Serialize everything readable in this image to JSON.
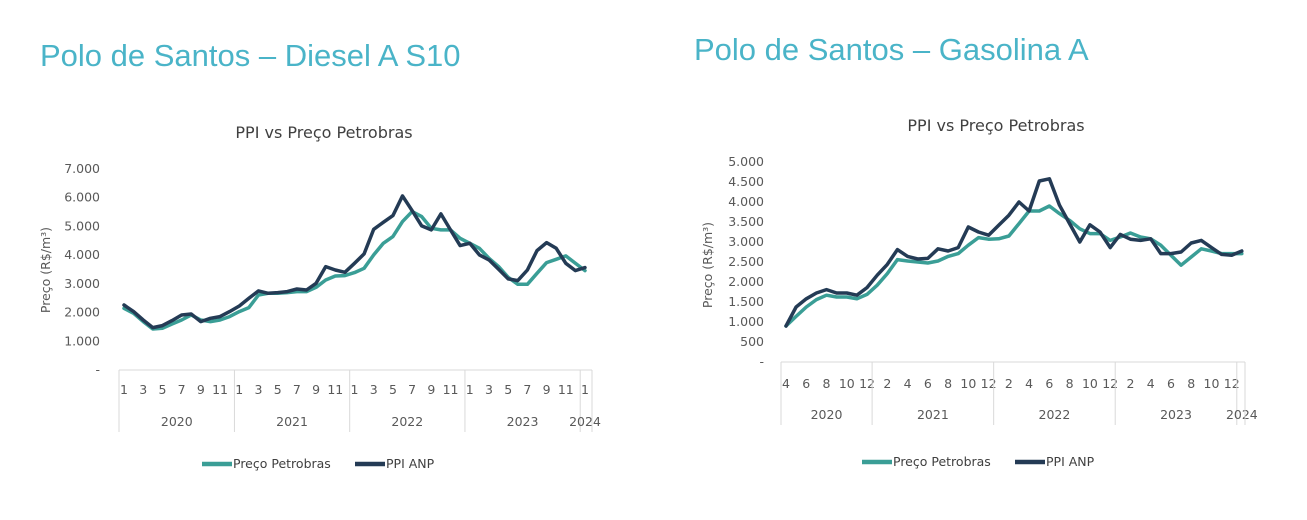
{
  "titles": [
    "Polo de Santos – Diesel A S10",
    "Polo de Santos – Gasolina A"
  ],
  "chart_data": [
    {
      "type": "line",
      "title": "PPI vs Preço Petrobras",
      "ylabel": "Preço (R$/m³)",
      "xlabel": "",
      "ylim": [
        0,
        7000
      ],
      "y_ticks": [
        "-",
        "1.000",
        "2.000",
        "3.000",
        "4.000",
        "5.000",
        "6.000",
        "7.000"
      ],
      "y_tick_values": [
        0,
        1000,
        2000,
        3000,
        4000,
        5000,
        6000,
        7000
      ],
      "grid": false,
      "legend_position": "bottom",
      "start": {
        "year": 2020,
        "month": 1
      },
      "tick_months": [
        1,
        3,
        5,
        7,
        9,
        11
      ],
      "years": [
        "2020",
        "2021",
        "2022",
        "2023",
        "2024"
      ],
      "series": [
        {
          "name": "Preço Petrobras",
          "color": "#3A9E96",
          "values": [
            2149,
            1974,
            1684,
            1429,
            1452,
            1603,
            1742,
            1916,
            1742,
            1684,
            1742,
            1858,
            2033,
            2172,
            2613,
            2671,
            2671,
            2694,
            2729,
            2729,
            2880,
            3136,
            3275,
            3287,
            3392,
            3542,
            4007,
            4413,
            4646,
            5169,
            5517,
            5343,
            4936,
            4878,
            4878,
            4588,
            4413,
            4239,
            3891,
            3600,
            3229,
            2985,
            2985,
            3368,
            3740,
            3856,
            3972,
            3717,
            3461
          ]
        },
        {
          "name": "PPI ANP",
          "color": "#243B55",
          "values": [
            2265,
            2033,
            1742,
            1475,
            1545,
            1719,
            1916,
            1951,
            1684,
            1800,
            1858,
            2033,
            2230,
            2497,
            2753,
            2671,
            2694,
            2729,
            2822,
            2787,
            3020,
            3600,
            3484,
            3403,
            3717,
            4042,
            4901,
            5145,
            5377,
            6063,
            5552,
            5017,
            4878,
            5436,
            4878,
            4332,
            4413,
            4007,
            3833,
            3508,
            3171,
            3113,
            3484,
            4158,
            4437,
            4239,
            3717,
            3461,
            3565
          ]
        }
      ]
    },
    {
      "type": "line",
      "title": "PPI vs Preço Petrobras",
      "ylabel": "Preço (R$/m³)",
      "xlabel": "",
      "ylim": [
        0,
        5000
      ],
      "y_ticks": [
        "-",
        "500",
        "1.000",
        "1.500",
        "2.000",
        "2.500",
        "3.000",
        "3.500",
        "4.000",
        "4.500",
        "5.000"
      ],
      "y_tick_values": [
        0,
        500,
        1000,
        1500,
        2000,
        2500,
        3000,
        3500,
        4000,
        4500,
        5000
      ],
      "grid": false,
      "legend_position": "bottom",
      "start": {
        "year": 2020,
        "month": 4
      },
      "tick_months": [
        2,
        4,
        6,
        8,
        10,
        12
      ],
      "years": [
        "2020",
        "2021",
        "2022",
        "2023",
        "2024"
      ],
      "series": [
        {
          "name": "Preço Petrobras",
          "color": "#3A9E96",
          "values": [
            900,
            1140,
            1375,
            1560,
            1670,
            1625,
            1625,
            1580,
            1690,
            1920,
            2210,
            2560,
            2525,
            2500,
            2475,
            2525,
            2640,
            2710,
            2920,
            3110,
            3070,
            3080,
            3150,
            3460,
            3775,
            3775,
            3900,
            3710,
            3540,
            3330,
            3210,
            3210,
            3040,
            3125,
            3225,
            3125,
            3080,
            2920,
            2670,
            2420,
            2625,
            2830,
            2775,
            2710,
            2710,
            2710
          ]
        },
        {
          "name": "PPI ANP",
          "color": "#243B55",
          "values": [
            900,
            1375,
            1580,
            1725,
            1810,
            1725,
            1725,
            1670,
            1860,
            2170,
            2440,
            2810,
            2640,
            2575,
            2590,
            2830,
            2775,
            2860,
            3375,
            3250,
            3170,
            3420,
            3670,
            4000,
            3775,
            4525,
            4580,
            3920,
            3460,
            3000,
            3430,
            3250,
            2860,
            3190,
            3070,
            3040,
            3080,
            2710,
            2710,
            2750,
            2975,
            3040,
            2860,
            2690,
            2670,
            2775
          ]
        }
      ]
    }
  ]
}
